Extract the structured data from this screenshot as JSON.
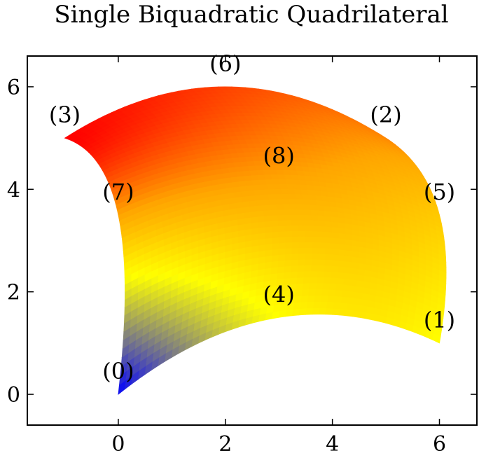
{
  "chart_data": {
    "type": "heatmap",
    "title": "Single Biquadratic Quadrilateral",
    "xlabel": "",
    "ylabel": "",
    "xlim": [
      -1.7,
      6.7
    ],
    "ylim": [
      -0.6,
      6.6
    ],
    "xticks": [
      0,
      2,
      4,
      6
    ],
    "yticks": [
      0,
      2,
      4,
      6
    ],
    "grid": false,
    "colormap": [
      "#0000ff",
      "#ffff00",
      "#ffa500",
      "#ff0000"
    ],
    "points": [
      {
        "label": "(0)",
        "x": 0,
        "y": 0,
        "value": 0
      },
      {
        "label": "(1)",
        "x": 6,
        "y": 1,
        "value": 0.5
      },
      {
        "label": "(2)",
        "x": 5,
        "y": 5,
        "value": 0.8
      },
      {
        "label": "(3)",
        "x": -1,
        "y": 5,
        "value": 1
      },
      {
        "label": "(4)",
        "x": 3,
        "y": 1.5,
        "value": 0.5
      },
      {
        "label": "(5)",
        "x": 6,
        "y": 3.5,
        "value": 0.65
      },
      {
        "label": "(6)",
        "x": 2,
        "y": 6,
        "value": 0.9
      },
      {
        "label": "(7)",
        "x": 0,
        "y": 3.5,
        "value": 0.75
      },
      {
        "label": "(8)",
        "x": 3,
        "y": 4.2,
        "value": 0.75
      }
    ]
  }
}
